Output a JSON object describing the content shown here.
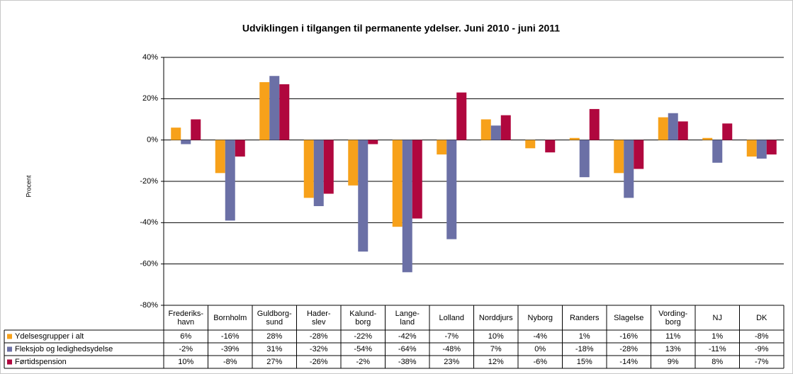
{
  "chart_data": {
    "type": "bar",
    "title": "Udviklingen i tilgangen til permanente ydelser.  Juni 2010 - juni 2011",
    "y_label": "Procent",
    "categories": [
      "Frederiks-\nhavn",
      "Bornholm",
      "Guldborg-\nsund",
      "Hader-\nslev",
      "Kalund-\nborg",
      "Lange-\nland",
      "Lolland",
      "Norddjurs",
      "Nyborg",
      "Randers",
      "Slagelse",
      "Vording-\nborg",
      "NJ",
      "DK"
    ],
    "series": [
      {
        "name": "Ydelsesgrupper i alt",
        "color": "#f7a11a",
        "values": [
          6,
          -16,
          28,
          -28,
          -22,
          -42,
          -7,
          10,
          -4,
          1,
          -16,
          11,
          1,
          -8
        ],
        "value_labels": [
          "6%",
          "-16%",
          "28%",
          "-28%",
          "-22%",
          "-42%",
          "-7%",
          "10%",
          "-4%",
          "1%",
          "-16%",
          "11%",
          "1%",
          "-8%"
        ]
      },
      {
        "name": "Fleksjob og ledighedsydelse",
        "color": "#6b70a6",
        "values": [
          -2,
          -39,
          31,
          -32,
          -54,
          -64,
          -48,
          7,
          0,
          -18,
          -28,
          13,
          -11,
          -9
        ],
        "value_labels": [
          "-2%",
          "-39%",
          "31%",
          "-32%",
          "-54%",
          "-64%",
          "-48%",
          "7%",
          "0%",
          "-18%",
          "-28%",
          "13%",
          "-11%",
          "-9%"
        ]
      },
      {
        "name": "Førtidspension",
        "color": "#b0073e",
        "values": [
          10,
          -8,
          27,
          -26,
          -2,
          -38,
          23,
          12,
          -6,
          15,
          -14,
          9,
          8,
          -7
        ],
        "value_labels": [
          "10%",
          "-8%",
          "27%",
          "-26%",
          "-2%",
          "-38%",
          "23%",
          "12%",
          "-6%",
          "15%",
          "-14%",
          "9%",
          "8%",
          "-7%"
        ]
      }
    ],
    "ylim": [
      -80,
      40
    ],
    "yticks": [
      {
        "value": -80,
        "label": "-80%"
      },
      {
        "value": -60,
        "label": "-60%"
      },
      {
        "value": -40,
        "label": "-40%"
      },
      {
        "value": -20,
        "label": "-20%"
      },
      {
        "value": 0,
        "label": "0%"
      },
      {
        "value": 20,
        "label": "20%"
      },
      {
        "value": 40,
        "label": "40%"
      }
    ],
    "grid": true
  }
}
